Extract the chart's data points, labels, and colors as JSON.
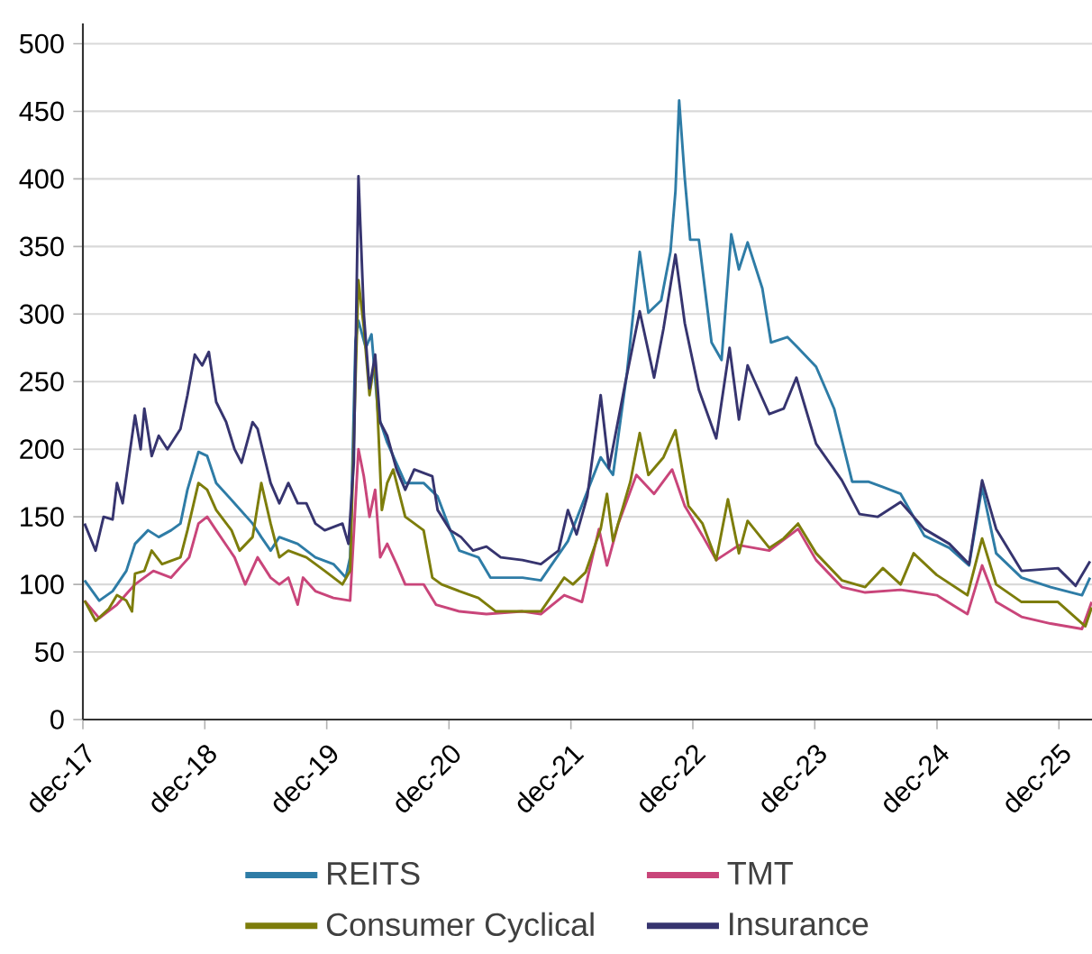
{
  "chart_data": {
    "type": "line",
    "grid": "y",
    "legend": "bottom",
    "xlim": [
      "2017-12-01",
      "2026-03-10"
    ],
    "ylim": [
      0,
      515
    ],
    "xticks": [
      {
        "value": "2017-12-01",
        "label": "dec-17"
      },
      {
        "value": "2018-12-01",
        "label": "dec-18"
      },
      {
        "value": "2019-12-01",
        "label": "dec-19"
      },
      {
        "value": "2020-12-01",
        "label": "dec-20"
      },
      {
        "value": "2021-12-01",
        "label": "dec-21"
      },
      {
        "value": "2022-12-01",
        "label": "dec-22"
      },
      {
        "value": "2023-12-01",
        "label": "dec-23"
      },
      {
        "value": "2024-12-01",
        "label": "dec-24"
      },
      {
        "value": "2025-12-01",
        "label": "dec-25"
      }
    ],
    "yticks": [
      0,
      50,
      100,
      150,
      200,
      250,
      300,
      350,
      400,
      450,
      500
    ],
    "series": [
      {
        "name": "REITS",
        "color": "#2e7ca6",
        "x": [
          "2017-12-06",
          "2018-01-19",
          "2018-02-28",
          "2018-04-10",
          "2018-05-06",
          "2018-06-14",
          "2018-07-16",
          "2018-08-22",
          "2018-09-19",
          "2018-10-10",
          "2018-11-12",
          "2018-12-08",
          "2019-01-04",
          "2019-02-28",
          "2019-04-23",
          "2019-05-19",
          "2019-06-16",
          "2019-07-12",
          "2019-09-05",
          "2019-10-28",
          "2019-12-21",
          "2020-01-27",
          "2020-02-09",
          "2020-02-25",
          "2020-03-05",
          "2020-03-27",
          "2020-04-13",
          "2020-05-03",
          "2020-05-30",
          "2020-07-23",
          "2020-09-16",
          "2020-10-28",
          "2020-12-05",
          "2021-01-01",
          "2021-02-27",
          "2021-04-04",
          "2021-07-09",
          "2021-09-02",
          "2021-11-22",
          "2022-02-28",
          "2022-04-06",
          "2022-05-18",
          "2022-06-25",
          "2022-07-21",
          "2022-08-28",
          "2022-09-25",
          "2022-10-10",
          "2022-10-21",
          "2022-11-07",
          "2022-11-23",
          "2022-12-19",
          "2023-01-26",
          "2023-02-25",
          "2023-03-26",
          "2023-04-18",
          "2023-05-14",
          "2023-06-27",
          "2023-07-23",
          "2023-09-10",
          "2023-10-12",
          "2023-12-05",
          "2024-01-28",
          "2024-03-22",
          "2024-05-09",
          "2024-06-22",
          "2024-08-14",
          "2024-10-24",
          "2025-01-07",
          "2025-03-07",
          "2025-04-15",
          "2025-05-27",
          "2025-08-11",
          "2025-11-06",
          "2026-02-08",
          "2026-03-04"
        ],
        "values": [
          103,
          88,
          95,
          110,
          130,
          140,
          135,
          140,
          145,
          170,
          198,
          195,
          175,
          160,
          145,
          135,
          125,
          135,
          130,
          120,
          115,
          105,
          120,
          280,
          295,
          275,
          285,
          225,
          205,
          175,
          175,
          165,
          140,
          125,
          120,
          105,
          105,
          103,
          132,
          194,
          181,
          257,
          346,
          301,
          310,
          346,
          391,
          458,
          400,
          355,
          355,
          279,
          266,
          359,
          333,
          353,
          319,
          279,
          283,
          275,
          261,
          230,
          176,
          176,
          172,
          167,
          136,
          127,
          114,
          172,
          123,
          105,
          98,
          92,
          105
        ]
      },
      {
        "name": "TMT",
        "color": "#c9457a",
        "x": [
          "2017-12-06",
          "2018-01-19",
          "2018-03-13",
          "2018-05-06",
          "2018-06-30",
          "2018-08-22",
          "2018-10-15",
          "2018-11-12",
          "2018-12-08",
          "2019-01-04",
          "2019-02-28",
          "2019-04-01",
          "2019-05-08",
          "2019-06-16",
          "2019-07-12",
          "2019-08-08",
          "2019-09-05",
          "2019-09-21",
          "2019-10-28",
          "2019-12-21",
          "2020-02-09",
          "2020-02-25",
          "2020-03-05",
          "2020-03-21",
          "2020-04-07",
          "2020-04-24",
          "2020-05-09",
          "2020-05-30",
          "2020-06-27",
          "2020-07-23",
          "2020-09-16",
          "2020-10-23",
          "2021-01-01",
          "2021-03-23",
          "2021-07-09",
          "2021-09-02",
          "2021-11-11",
          "2022-01-03",
          "2022-02-23",
          "2022-03-19",
          "2022-04-22",
          "2022-06-15",
          "2022-08-07",
          "2022-09-30",
          "2022-11-07",
          "2022-12-30",
          "2023-02-09",
          "2023-04-18",
          "2023-07-18",
          "2023-10-12",
          "2023-12-05",
          "2024-02-20",
          "2024-04-30",
          "2024-08-14",
          "2024-11-30",
          "2025-03-02",
          "2025-04-15",
          "2025-05-27",
          "2025-08-11",
          "2025-11-06",
          "2026-02-08",
          "2026-03-09"
        ],
        "values": [
          88,
          75,
          85,
          100,
          110,
          105,
          120,
          145,
          150,
          140,
          120,
          100,
          120,
          105,
          100,
          105,
          85,
          105,
          95,
          90,
          88,
          160,
          200,
          180,
          150,
          170,
          120,
          130,
          115,
          100,
          100,
          85,
          80,
          78,
          80,
          78,
          92,
          87,
          141,
          114,
          145,
          181,
          167,
          185,
          158,
          136,
          118,
          129,
          125,
          141,
          118,
          98,
          94,
          96,
          92,
          78,
          114,
          87,
          76,
          71,
          67,
          87
        ]
      },
      {
        "name": "Consumer Cyclical",
        "color": "#7d7d0b",
        "x": [
          "2017-12-06",
          "2018-01-08",
          "2018-02-17",
          "2018-03-13",
          "2018-04-10",
          "2018-04-27",
          "2018-05-06",
          "2018-06-03",
          "2018-06-25",
          "2018-07-26",
          "2018-09-19",
          "2018-10-10",
          "2018-11-12",
          "2018-12-08",
          "2019-01-04",
          "2019-02-19",
          "2019-03-15",
          "2019-04-23",
          "2019-05-19",
          "2019-06-16",
          "2019-07-12",
          "2019-08-08",
          "2019-10-01",
          "2019-11-25",
          "2020-01-17",
          "2020-02-09",
          "2020-02-25",
          "2020-03-05",
          "2020-03-21",
          "2020-04-07",
          "2020-04-24",
          "2020-05-14",
          "2020-05-30",
          "2020-06-17",
          "2020-07-23",
          "2020-09-16",
          "2020-10-12",
          "2020-11-09",
          "2021-01-01",
          "2021-02-27",
          "2021-04-20",
          "2021-07-09",
          "2021-09-02",
          "2021-11-11",
          "2021-12-07",
          "2022-01-14",
          "2022-02-28",
          "2022-03-19",
          "2022-04-06",
          "2022-05-28",
          "2022-06-25",
          "2022-07-21",
          "2022-09-04",
          "2022-10-10",
          "2022-11-18",
          "2022-12-30",
          "2023-02-09",
          "2023-03-16",
          "2023-04-18",
          "2023-05-14",
          "2023-07-18",
          "2023-08-30",
          "2023-10-12",
          "2023-12-05",
          "2024-02-20",
          "2024-04-30",
          "2024-06-22",
          "2024-08-14",
          "2024-09-22",
          "2024-11-30",
          "2025-03-02",
          "2025-04-15",
          "2025-05-27",
          "2025-08-11",
          "2025-11-28",
          "2026-02-18",
          "2026-03-09"
        ],
        "values": [
          88,
          73,
          82,
          92,
          88,
          80,
          108,
          110,
          125,
          115,
          120,
          140,
          175,
          170,
          155,
          140,
          125,
          135,
          175,
          145,
          120,
          125,
          120,
          110,
          100,
          110,
          250,
          325,
          290,
          240,
          268,
          155,
          175,
          185,
          150,
          140,
          105,
          100,
          95,
          90,
          80,
          80,
          80,
          105,
          100,
          109,
          141,
          167,
          132,
          176,
          212,
          181,
          194,
          214,
          158,
          145,
          118,
          163,
          123,
          147,
          127,
          134,
          145,
          123,
          103,
          98,
          112,
          100,
          123,
          107,
          92,
          134,
          100,
          87,
          87,
          69,
          83
        ]
      },
      {
        "name": "Insurance",
        "color": "#36346f",
        "x": [
          "2017-12-06",
          "2018-01-08",
          "2018-02-01",
          "2018-02-28",
          "2018-03-13",
          "2018-03-30",
          "2018-05-06",
          "2018-05-23",
          "2018-06-03",
          "2018-06-25",
          "2018-07-16",
          "2018-08-11",
          "2018-09-19",
          "2018-10-10",
          "2018-11-01",
          "2018-11-23",
          "2018-12-13",
          "2019-01-04",
          "2019-02-03",
          "2019-02-28",
          "2019-03-21",
          "2019-04-23",
          "2019-05-08",
          "2019-06-16",
          "2019-07-12",
          "2019-08-08",
          "2019-09-05",
          "2019-10-01",
          "2019-10-28",
          "2019-11-25",
          "2020-01-17",
          "2020-02-04",
          "2020-02-20",
          "2020-03-05",
          "2020-03-21",
          "2020-04-07",
          "2020-04-24",
          "2020-05-09",
          "2020-05-30",
          "2020-06-27",
          "2020-07-23",
          "2020-08-19",
          "2020-10-12",
          "2020-10-28",
          "2020-12-05",
          "2021-01-06",
          "2021-02-11",
          "2021-03-23",
          "2021-05-05",
          "2021-07-09",
          "2021-09-02",
          "2021-10-25",
          "2021-11-22",
          "2021-12-18",
          "2022-01-19",
          "2022-02-28",
          "2022-03-25",
          "2022-05-12",
          "2022-06-25",
          "2022-08-07",
          "2022-09-04",
          "2022-10-10",
          "2022-11-07",
          "2022-12-19",
          "2023-02-09",
          "2023-03-21",
          "2023-04-18",
          "2023-05-14",
          "2023-07-18",
          "2023-08-30",
          "2023-10-07",
          "2023-12-05",
          "2024-02-20",
          "2024-04-13",
          "2024-06-06",
          "2024-08-14",
          "2024-10-24",
          "2025-01-07",
          "2025-03-07",
          "2025-04-15",
          "2025-05-27",
          "2025-08-11",
          "2025-11-28",
          "2026-01-20",
          "2026-03-04"
        ],
        "values": [
          145,
          125,
          150,
          148,
          175,
          160,
          225,
          200,
          230,
          195,
          210,
          200,
          215,
          240,
          270,
          262,
          272,
          235,
          220,
          200,
          190,
          220,
          215,
          175,
          160,
          175,
          160,
          160,
          145,
          140,
          145,
          130,
          190,
          402,
          300,
          245,
          270,
          220,
          210,
          185,
          170,
          185,
          180,
          155,
          140,
          135,
          125,
          128,
          120,
          118,
          115,
          125,
          155,
          137,
          165,
          240,
          186,
          248,
          302,
          253,
          289,
          344,
          293,
          244,
          208,
          275,
          222,
          262,
          226,
          230,
          253,
          204,
          177,
          152,
          150,
          161,
          141,
          130,
          115,
          177,
          141,
          110,
          112,
          99,
          117
        ]
      }
    ]
  }
}
